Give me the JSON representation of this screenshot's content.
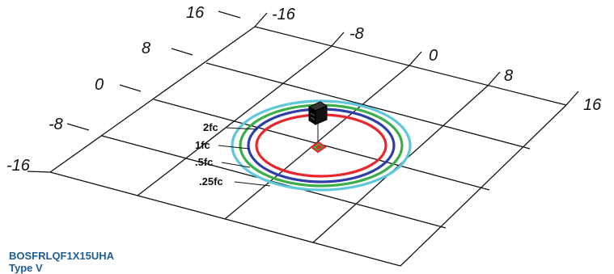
{
  "axes": {
    "left_ticks": [
      "16",
      "8",
      "0",
      "-8",
      "-16"
    ],
    "top_ticks": [
      "-16",
      "-8",
      "0",
      "8",
      "16"
    ]
  },
  "contours": [
    {
      "label": "2fc",
      "color": "#e8262c"
    },
    {
      "label": "1fc",
      "color": "#2d3fa7"
    },
    {
      "label": ".5fc",
      "color": "#3aae48"
    },
    {
      "label": ".25fc",
      "color": "#5fc7dc"
    }
  ],
  "fixture": {
    "model": "BOSFRLQF1X15UHA",
    "type": "Type V",
    "body_color": "#111111",
    "center_marker_colors": [
      "#e8262c",
      "#3aae48"
    ]
  },
  "colors": {
    "grid": "#111111",
    "caption": "#1f5d95"
  }
}
